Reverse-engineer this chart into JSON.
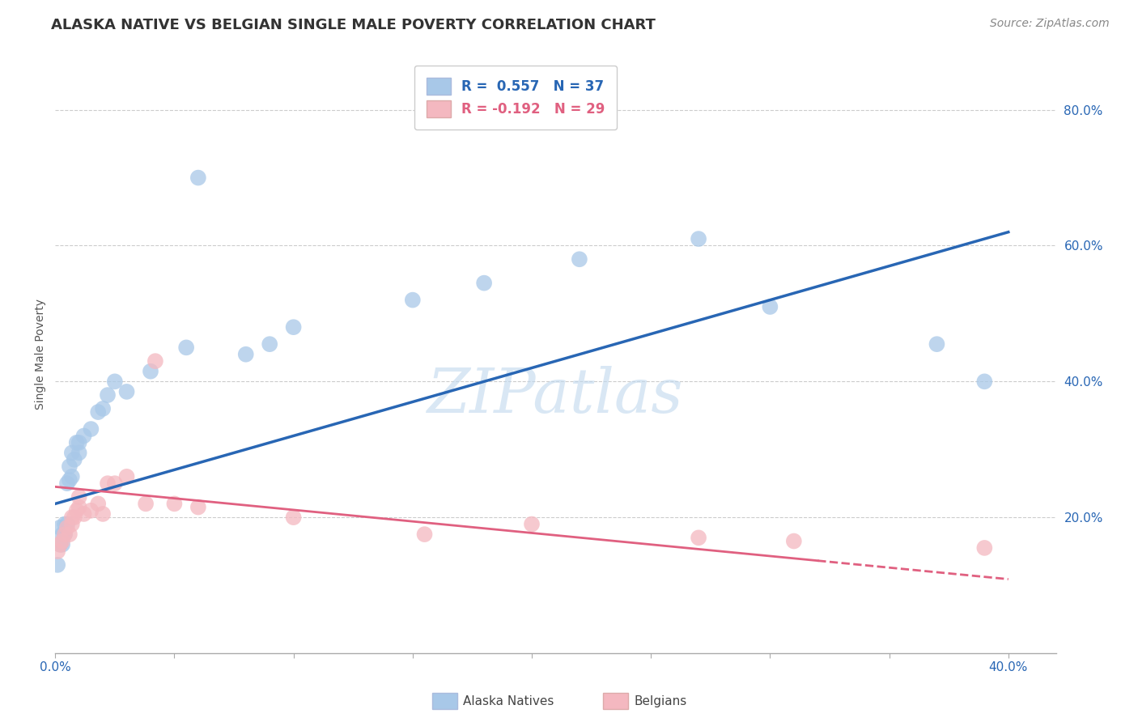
{
  "title": "ALASKA NATIVE VS BELGIAN SINGLE MALE POVERTY CORRELATION CHART",
  "source_text": "Source: ZipAtlas.com",
  "ylabel": "Single Male Poverty",
  "watermark": "ZIPatlas",
  "xlim": [
    0.0,
    0.42
  ],
  "ylim": [
    0.0,
    0.88
  ],
  "yticks": [
    0.2,
    0.4,
    0.6,
    0.8
  ],
  "xtick_labels_show": [
    0.0,
    0.4
  ],
  "r_alaska": 0.557,
  "n_alaska": 37,
  "r_belgian": -0.192,
  "n_belgian": 29,
  "alaska_color": "#a8c8e8",
  "belgian_color": "#f4b8c0",
  "alaska_line_color": "#2866b4",
  "belgian_line_color": "#e06080",
  "alaska_intercept": 0.22,
  "alaska_slope": 1.0,
  "belgian_intercept": 0.245,
  "belgian_slope": -0.34,
  "alaska_scatter_x": [
    0.001,
    0.002,
    0.002,
    0.003,
    0.003,
    0.004,
    0.004,
    0.005,
    0.005,
    0.006,
    0.006,
    0.007,
    0.007,
    0.008,
    0.009,
    0.01,
    0.01,
    0.012,
    0.015,
    0.018,
    0.02,
    0.022,
    0.025,
    0.03,
    0.04,
    0.055,
    0.06,
    0.08,
    0.09,
    0.1,
    0.15,
    0.18,
    0.22,
    0.27,
    0.3,
    0.37,
    0.39
  ],
  "alaska_scatter_y": [
    0.13,
    0.16,
    0.185,
    0.175,
    0.16,
    0.19,
    0.175,
    0.19,
    0.25,
    0.255,
    0.275,
    0.26,
    0.295,
    0.285,
    0.31,
    0.295,
    0.31,
    0.32,
    0.33,
    0.355,
    0.36,
    0.38,
    0.4,
    0.385,
    0.415,
    0.45,
    0.7,
    0.44,
    0.455,
    0.48,
    0.52,
    0.545,
    0.58,
    0.61,
    0.51,
    0.455,
    0.4
  ],
  "belgian_scatter_x": [
    0.001,
    0.002,
    0.003,
    0.004,
    0.005,
    0.006,
    0.007,
    0.007,
    0.008,
    0.009,
    0.01,
    0.01,
    0.012,
    0.015,
    0.018,
    0.02,
    0.022,
    0.025,
    0.03,
    0.038,
    0.042,
    0.05,
    0.06,
    0.1,
    0.155,
    0.2,
    0.27,
    0.31,
    0.39
  ],
  "belgian_scatter_y": [
    0.15,
    0.16,
    0.165,
    0.175,
    0.185,
    0.175,
    0.19,
    0.2,
    0.2,
    0.21,
    0.215,
    0.23,
    0.205,
    0.21,
    0.22,
    0.205,
    0.25,
    0.25,
    0.26,
    0.22,
    0.43,
    0.22,
    0.215,
    0.2,
    0.175,
    0.19,
    0.17,
    0.165,
    0.155
  ],
  "title_fontsize": 13,
  "axis_label_fontsize": 10,
  "tick_fontsize": 11,
  "legend_fontsize": 12,
  "source_fontsize": 10,
  "watermark_fontsize": 55,
  "background_color": "#ffffff",
  "grid_color": "#cccccc"
}
